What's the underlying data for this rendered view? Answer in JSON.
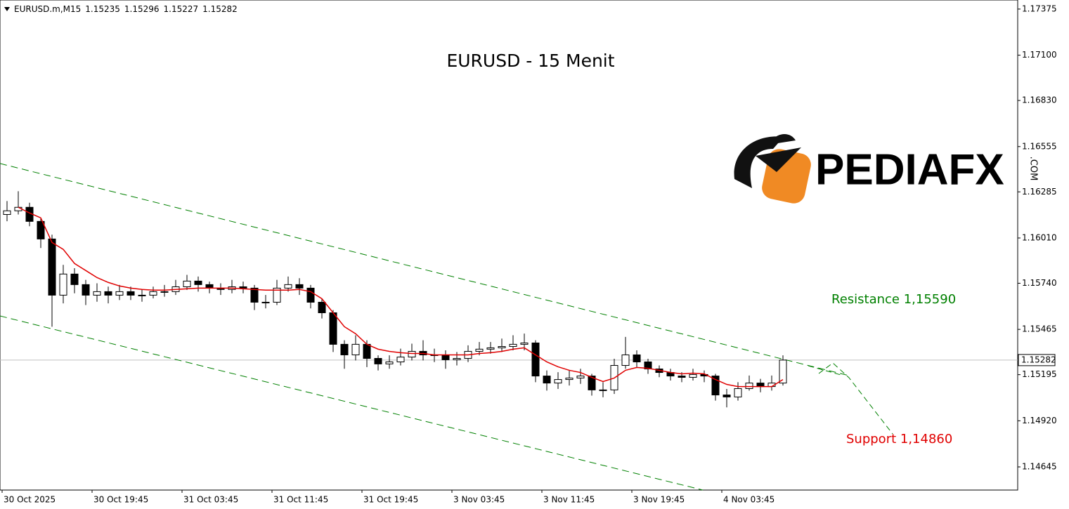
{
  "chart_data": {
    "type": "candlestick",
    "title": "EURUSD - 15 Menit",
    "header": {
      "symbol": "EURUSD.m,M15",
      "ohlc": [
        1.15235,
        1.15296,
        1.15227,
        1.15282
      ]
    },
    "categories": [
      "30 Oct 2025",
      null,
      null,
      null,
      null,
      null,
      null,
      null,
      "30 Oct 19:45",
      null,
      null,
      null,
      null,
      null,
      null,
      null,
      "31 Oct 03:45",
      null,
      null,
      null,
      null,
      null,
      null,
      null,
      "31 Oct 11:45",
      null,
      null,
      null,
      null,
      null,
      null,
      null,
      "31 Oct 19:45",
      null,
      null,
      null,
      null,
      null,
      null,
      null,
      "3 Nov 03:45",
      null,
      null,
      null,
      null,
      null,
      null,
      null,
      "3 Nov 11:45",
      null,
      null,
      null,
      null,
      null,
      null,
      null,
      "3 Nov 19:45",
      null,
      null,
      null,
      null,
      null,
      null,
      null,
      "4 Nov 03:45",
      null,
      null,
      null,
      null,
      null
    ],
    "open": [
      1.1615,
      1.16172,
      1.16193,
      1.16109,
      1.16004,
      1.15669,
      1.15795,
      1.15732,
      1.15669,
      1.1569,
      1.15669,
      1.1569,
      1.15669,
      1.15669,
      1.1569,
      1.1569,
      1.15719,
      1.15753,
      1.15732,
      1.15711,
      1.15703,
      1.15719,
      1.15711,
      1.15627,
      1.15627,
      1.15711,
      1.15732,
      1.15711,
      1.15627,
      1.15564,
      1.15376,
      1.15313,
      1.15376,
      1.15292,
      1.15259,
      1.15271,
      1.153,
      1.15334,
      1.15313,
      1.15313,
      1.15284,
      1.15292,
      1.15334,
      1.15347,
      1.15355,
      1.15363,
      1.15376,
      1.15384,
      1.15187,
      1.15145,
      1.15166,
      1.15175,
      1.15187,
      1.15104,
      1.15104,
      1.1525,
      1.15313,
      1.15271,
      1.15229,
      1.15208,
      1.15187,
      1.15179,
      1.15196,
      1.15187,
      1.15074,
      1.15062,
      1.15112,
      1.15145,
      1.15124,
      1.15145
    ],
    "high": [
      1.1623,
      1.16289,
      1.1622,
      1.1613,
      1.1603,
      1.1585,
      1.1583,
      1.1576,
      1.1574,
      1.1572,
      1.1573,
      1.1572,
      1.157,
      1.1572,
      1.1573,
      1.1576,
      1.1579,
      1.1578,
      1.1575,
      1.1574,
      1.1576,
      1.1575,
      1.1573,
      1.1567,
      1.1576,
      1.1578,
      1.1577,
      1.1573,
      1.1565,
      1.1558,
      1.154,
      1.1543,
      1.154,
      1.1531,
      1.1531,
      1.1535,
      1.1538,
      1.154,
      1.1535,
      1.1534,
      1.1533,
      1.1537,
      1.1539,
      1.1539,
      1.1541,
      1.1543,
      1.1544,
      1.154,
      1.1522,
      1.1521,
      1.1522,
      1.1523,
      1.152,
      1.1515,
      1.1529,
      1.1542,
      1.1534,
      1.1529,
      1.1525,
      1.1523,
      1.1521,
      1.1523,
      1.1522,
      1.152,
      1.1511,
      1.1515,
      1.1519,
      1.1517,
      1.1519,
      1.1531
    ],
    "low": [
      1.1611,
      1.1615,
      1.1608,
      1.1595,
      1.15481,
      1.1562,
      1.1568,
      1.1561,
      1.1563,
      1.1562,
      1.1564,
      1.1564,
      1.1563,
      1.1565,
      1.1566,
      1.1567,
      1.157,
      1.1569,
      1.1568,
      1.1567,
      1.1568,
      1.1568,
      1.1558,
      1.1559,
      1.1561,
      1.1569,
      1.1567,
      1.1559,
      1.1553,
      1.1533,
      1.1523,
      1.1528,
      1.1524,
      1.1522,
      1.1523,
      1.1525,
      1.1528,
      1.1528,
      1.1527,
      1.1523,
      1.1525,
      1.1527,
      1.1531,
      1.1532,
      1.1533,
      1.1534,
      1.1534,
      1.1515,
      1.151,
      1.1511,
      1.1513,
      1.1514,
      1.1507,
      1.1506,
      1.1508,
      1.1523,
      1.1524,
      1.152,
      1.1518,
      1.1516,
      1.1515,
      1.1516,
      1.1515,
      1.1504,
      1.15,
      1.1504,
      1.151,
      1.1509,
      1.151,
      1.1513
    ],
    "close": [
      1.16172,
      1.16193,
      1.16109,
      1.16004,
      1.15669,
      1.15795,
      1.15732,
      1.15669,
      1.1569,
      1.15669,
      1.1569,
      1.15669,
      1.15669,
      1.1569,
      1.1569,
      1.15719,
      1.15753,
      1.15732,
      1.15711,
      1.15703,
      1.15719,
      1.15711,
      1.15627,
      1.15627,
      1.15711,
      1.15732,
      1.15711,
      1.15627,
      1.15564,
      1.15376,
      1.15313,
      1.15376,
      1.15292,
      1.15259,
      1.15271,
      1.153,
      1.15334,
      1.15313,
      1.15313,
      1.15284,
      1.15292,
      1.15334,
      1.15347,
      1.15355,
      1.15363,
      1.15376,
      1.15384,
      1.15187,
      1.15145,
      1.15166,
      1.15175,
      1.15187,
      1.15104,
      1.15104,
      1.1525,
      1.15313,
      1.15271,
      1.15229,
      1.15208,
      1.15187,
      1.15179,
      1.15196,
      1.15187,
      1.15074,
      1.15062,
      1.15112,
      1.15145,
      1.15124,
      1.15145,
      1.15282
    ],
    "ma": {
      "color": "#e00000",
      "values": [
        null,
        1.16193,
        1.16159,
        1.1613,
        1.15983,
        1.15942,
        1.15858,
        1.15816,
        1.15774,
        1.15745,
        1.15724,
        1.15711,
        1.15703,
        1.15699,
        1.15699,
        1.15703,
        1.15707,
        1.15711,
        1.15711,
        1.15711,
        1.15711,
        1.15707,
        1.15703,
        1.15699,
        1.15699,
        1.15699,
        1.15703,
        1.1569,
        1.15648,
        1.15564,
        1.15481,
        1.15439,
        1.15376,
        1.15347,
        1.15334,
        1.15326,
        1.15321,
        1.15321,
        1.15313,
        1.15313,
        1.15313,
        1.15313,
        1.15321,
        1.15326,
        1.15334,
        1.15347,
        1.15355,
        1.15313,
        1.15271,
        1.15242,
        1.15221,
        1.15208,
        1.15179,
        1.15154,
        1.15175,
        1.15221,
        1.15238,
        1.15233,
        1.15221,
        1.15208,
        1.152,
        1.15204,
        1.152,
        1.15166,
        1.15137,
        1.15124,
        1.15124,
        1.15124,
        1.15124,
        1.15166
      ]
    },
    "current_price": 1.15282,
    "trendlines": [
      {
        "color": "#008000",
        "start": 1.16454,
        "end": 1.15187
      },
      {
        "color": "#008000",
        "start": 1.15545,
        "end": 1.14507
      }
    ],
    "annotations": [
      {
        "text": "Resistance 1,15590",
        "color": "#008000"
      },
      {
        "text": "Support 1,14860",
        "color": "#e00000"
      }
    ],
    "logo": {
      "text": "PEDIAFX",
      "suffix": ".COM"
    },
    "ylim": [
      1.14507,
      1.17429
    ],
    "yticks": [
      1.17375,
      {
        "value": 1.171,
        "label": "1.17100"
      },
      {
        "value": 1.1683,
        "label": "1.16830"
      },
      1.16555,
      1.16285,
      {
        "value": 1.1601,
        "label": "1.16010"
      },
      {
        "value": 1.1574,
        "label": "1.15740"
      },
      1.15465,
      1.15195,
      {
        "value": 1.1492,
        "label": "1.14920"
      },
      1.14645
    ]
  }
}
